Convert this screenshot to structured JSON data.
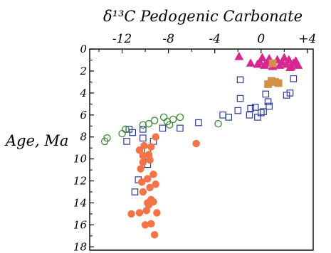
{
  "chart_data": {
    "type": "scatter",
    "title": "δ¹³C Pedogenic Carbonate",
    "xlabel": "",
    "ylabel": "Age, Ma",
    "xlim": [
      -14.8,
      4.5
    ],
    "ylim": [
      0,
      18.3
    ],
    "x_tick_labels": [
      "-12",
      "-8",
      "-4",
      "0",
      "+4"
    ],
    "x_tick_values": [
      -12,
      -8,
      -4,
      0,
      4
    ],
    "y_tick_values": [
      0,
      2,
      4,
      6,
      8,
      10,
      12,
      14,
      16,
      18
    ],
    "x_axis_position": "top",
    "y_axis_inverted": true,
    "grid": false,
    "legend": "none",
    "series": [
      {
        "marker": "triangle",
        "color": "#d6288f",
        "filled": true,
        "points": [
          [
            -1.9,
            0.7
          ],
          [
            -0.9,
            1.3
          ],
          [
            -0.3,
            1.4
          ],
          [
            -0.1,
            1.2
          ],
          [
            0.1,
            0.8
          ],
          [
            0.3,
            1.5
          ],
          [
            0.5,
            1.3
          ],
          [
            0.7,
            0.9
          ],
          [
            1.0,
            1.6
          ],
          [
            1.4,
            1.0
          ],
          [
            1.6,
            1.5
          ],
          [
            1.8,
            1.2
          ],
          [
            2.0,
            0.8
          ],
          [
            2.2,
            1.4
          ],
          [
            2.4,
            1.0
          ],
          [
            2.6,
            1.6
          ],
          [
            2.8,
            1.3
          ],
          [
            3.0,
            1.1
          ],
          [
            3.2,
            1.5
          ],
          [
            2.5,
            1.7
          ]
        ]
      },
      {
        "marker": "square",
        "color": "#d3904a",
        "filled": true,
        "points": [
          [
            1.0,
            1.3
          ],
          [
            0.6,
            3.2
          ],
          [
            0.9,
            2.9
          ],
          [
            1.2,
            3.0
          ],
          [
            1.5,
            3.1
          ]
        ]
      },
      {
        "marker": "square",
        "color": "#2b3c94",
        "filled": false,
        "points": [
          [
            -1.8,
            2.8
          ],
          [
            -1.8,
            4.5
          ],
          [
            -2.0,
            5.6
          ],
          [
            -2.8,
            6.2
          ],
          [
            -3.3,
            6.0
          ],
          [
            -1.0,
            6.0
          ],
          [
            -0.9,
            5.4
          ],
          [
            -0.5,
            5.3
          ],
          [
            -0.3,
            6.2
          ],
          [
            0.0,
            5.8
          ],
          [
            0.2,
            5.7
          ],
          [
            0.4,
            4.1
          ],
          [
            0.6,
            4.8
          ],
          [
            0.7,
            5.2
          ],
          [
            2.8,
            2.7
          ],
          [
            2.2,
            4.2
          ],
          [
            2.5,
            4.0
          ],
          [
            -5.4,
            6.7
          ],
          [
            -8.5,
            7.2
          ],
          [
            -7.0,
            7.2
          ],
          [
            -10.2,
            7.3
          ],
          [
            -11.4,
            7.3
          ],
          [
            -11.1,
            7.6
          ],
          [
            -10.2,
            8.1
          ],
          [
            -9.3,
            8.4
          ],
          [
            -11.6,
            8.4
          ],
          [
            -9.8,
            9.2
          ],
          [
            -9.7,
            9.9
          ],
          [
            -9.8,
            10.5
          ],
          [
            -10.6,
            11.9
          ],
          [
            -10.9,
            13.0
          ]
        ]
      },
      {
        "marker": "circle",
        "color": "#3a8a33",
        "filled": false,
        "points": [
          [
            -7.0,
            6.2
          ],
          [
            -7.6,
            6.4
          ],
          [
            -8.1,
            6.6
          ],
          [
            -8.4,
            6.2
          ],
          [
            -7.9,
            6.9
          ],
          [
            -9.2,
            6.5
          ],
          [
            -9.7,
            6.8
          ],
          [
            -10.2,
            6.9
          ],
          [
            -11.7,
            7.3
          ],
          [
            -12.0,
            7.7
          ],
          [
            -13.3,
            8.1
          ],
          [
            -13.5,
            8.4
          ],
          [
            -3.7,
            6.8
          ]
        ]
      },
      {
        "marker": "circle",
        "color": "#f4744a",
        "filled": true,
        "points": [
          [
            -5.6,
            8.6
          ],
          [
            -9.1,
            8.0
          ],
          [
            -9.5,
            8.9
          ],
          [
            -10.1,
            8.8
          ],
          [
            -10.5,
            9.2
          ],
          [
            -10.2,
            9.7
          ],
          [
            -9.7,
            9.6
          ],
          [
            -9.6,
            10.1
          ],
          [
            -10.2,
            10.3
          ],
          [
            -10.4,
            10.9
          ],
          [
            -9.3,
            11.4
          ],
          [
            -9.8,
            11.8
          ],
          [
            -10.3,
            12.1
          ],
          [
            -9.1,
            12.3
          ],
          [
            -9.6,
            12.6
          ],
          [
            -10.2,
            13.0
          ],
          [
            -9.5,
            13.7
          ],
          [
            -9.8,
            14.0
          ],
          [
            -9.3,
            13.9
          ],
          [
            -9.7,
            14.2
          ],
          [
            -11.2,
            15.0
          ],
          [
            -10.5,
            14.9
          ],
          [
            -9.9,
            14.7
          ],
          [
            -9.0,
            14.9
          ],
          [
            -9.5,
            15.9
          ],
          [
            -10.0,
            16.0
          ],
          [
            -9.2,
            16.9
          ]
        ]
      }
    ]
  }
}
